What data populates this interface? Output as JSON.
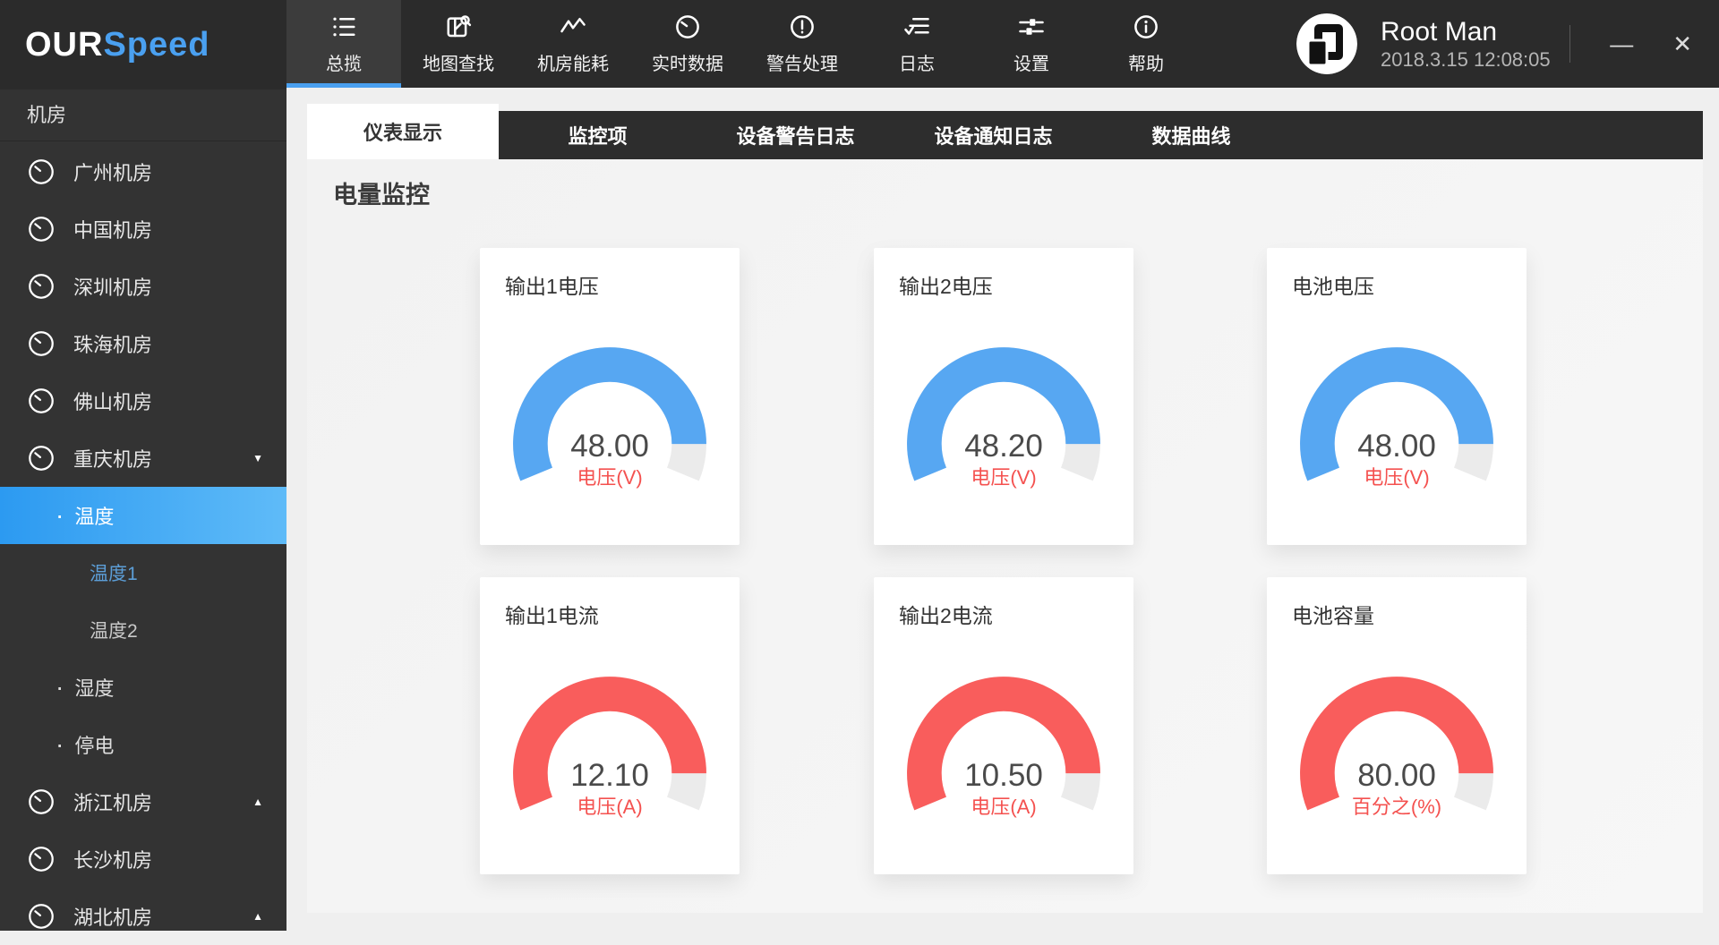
{
  "app": {
    "brand_our": "OUR",
    "brand_speed": "Speed",
    "accent_blue": "#4aa0f0",
    "window": {
      "minimize_label": "—",
      "close_label": "✕"
    }
  },
  "user": {
    "name": "Root Man",
    "datetime": "2018.3.15 12:08:05"
  },
  "top_nav": {
    "items": [
      {
        "name": "overview",
        "icon": "overview-icon",
        "label": "总揽",
        "active": true
      },
      {
        "name": "map-search",
        "icon": "map-search-icon",
        "label": "地图查找"
      },
      {
        "name": "room-energy",
        "icon": "energy-icon",
        "label": "机房能耗"
      },
      {
        "name": "realtime-data",
        "icon": "realtime-icon",
        "label": "实时数据"
      },
      {
        "name": "alert-handling",
        "icon": "alert-icon",
        "label": "警告处理"
      },
      {
        "name": "logs",
        "icon": "logs-icon",
        "label": "日志"
      },
      {
        "name": "settings",
        "icon": "settings-icon",
        "label": "设置"
      },
      {
        "name": "help",
        "icon": "help-icon",
        "label": "帮助"
      }
    ]
  },
  "sidebar": {
    "section_title": "机房",
    "bullet_char": "·",
    "arrow_down": "▼",
    "arrow_up": "▲",
    "items": [
      {
        "name": "guangzhou-room",
        "label": "广州机房",
        "level": 1
      },
      {
        "name": "china-room",
        "label": "中国机房",
        "level": 1
      },
      {
        "name": "shenzhen-room",
        "label": "深圳机房",
        "level": 1
      },
      {
        "name": "zhuhai-room",
        "label": "珠海机房",
        "level": 1
      },
      {
        "name": "foshan-room",
        "label": "佛山机房",
        "level": 1
      },
      {
        "name": "chongqing-room",
        "label": "重庆机房",
        "level": 1,
        "arrow": "down"
      },
      {
        "name": "temperature",
        "label": "温度",
        "level": 2,
        "bullet": true,
        "active": true
      },
      {
        "name": "temperature-1",
        "label": "温度1",
        "level": 3,
        "highlight": "blue"
      },
      {
        "name": "temperature-2",
        "label": "温度2",
        "level": 3
      },
      {
        "name": "humidity",
        "label": "湿度",
        "level": 2,
        "bullet": true
      },
      {
        "name": "power-outage",
        "label": "停电",
        "level": 2,
        "bullet": true
      },
      {
        "name": "zhejiang-room",
        "label": "浙江机房",
        "level": 1,
        "arrow": "up"
      },
      {
        "name": "changsha-room",
        "label": "长沙机房",
        "level": 1
      },
      {
        "name": "hubei-room",
        "label": "湖北机房",
        "level": 1,
        "arrow": "up"
      }
    ]
  },
  "tabs": {
    "items": [
      {
        "name": "gauge-display",
        "label": "仪表显示",
        "active": true
      },
      {
        "name": "monitor-items",
        "label": "监控项"
      },
      {
        "name": "device-warning-log",
        "label": "设备警告日志"
      },
      {
        "name": "device-notice-log",
        "label": "设备通知日志"
      },
      {
        "name": "data-curve",
        "label": "数据曲线"
      }
    ]
  },
  "main": {
    "heading": "电量监控"
  },
  "chart_data": [
    {
      "type": "gauge",
      "title": "输出1电压",
      "value": "48.00",
      "unit_label": "电压(V)",
      "color": "#57a7f2",
      "fill_fraction": 0.9,
      "start_angle": 202.5,
      "span_degrees": 225
    },
    {
      "type": "gauge",
      "title": "输出2电压",
      "value": "48.20",
      "unit_label": "电压(V)",
      "color": "#57a7f2",
      "fill_fraction": 0.9,
      "start_angle": 202.5,
      "span_degrees": 225
    },
    {
      "type": "gauge",
      "title": "电池电压",
      "value": "48.00",
      "unit_label": "电压(V)",
      "color": "#57a7f2",
      "fill_fraction": 0.9,
      "start_angle": 202.5,
      "span_degrees": 225
    },
    {
      "type": "gauge",
      "title": "输出1电流",
      "value": "12.10",
      "unit_label": "电压(A)",
      "color": "#f95d5c",
      "fill_fraction": 0.9,
      "start_angle": 202.5,
      "span_degrees": 225
    },
    {
      "type": "gauge",
      "title": "输出2电流",
      "value": "10.50",
      "unit_label": "电压(A)",
      "color": "#f95d5c",
      "fill_fraction": 0.9,
      "start_angle": 202.5,
      "span_degrees": 225
    },
    {
      "type": "gauge",
      "title": "电池容量",
      "value": "80.00",
      "unit_label": "百分之(%)",
      "color": "#f95d5c",
      "fill_fraction": 0.9,
      "start_angle": 202.5,
      "span_degrees": 225
    }
  ],
  "colors": {
    "gauge_track": "#ebebeb",
    "value_text": "#4a4a4a",
    "unit_text": "#f4514f",
    "highlight_gradient": [
      "#2c9af1",
      "#5fbbf8"
    ],
    "gauge_blue": "#57a7f2",
    "gauge_red": "#f95d5c"
  }
}
